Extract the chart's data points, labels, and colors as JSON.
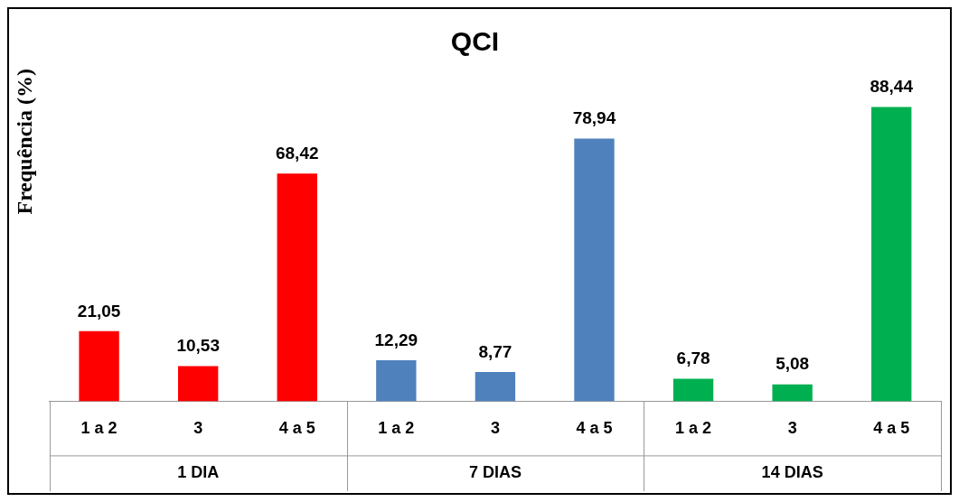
{
  "chart_data": {
    "type": "bar",
    "title": "QCI",
    "ylabel": "Frequência (%)",
    "categories": [
      "1 a 2",
      "3",
      "4 a 5",
      "1 a 2",
      "3",
      "4 a 5",
      "1 a 2",
      "3",
      "4 a 5"
    ],
    "values": [
      21.05,
      10.53,
      68.42,
      12.29,
      8.77,
      78.94,
      6.78,
      5.08,
      88.44
    ],
    "colors": [
      "#ff0000",
      "#ff0000",
      "#ff0000",
      "#4f81bd",
      "#4f81bd",
      "#4f81bd",
      "#00b050",
      "#00b050",
      "#00b050"
    ],
    "value_labels": [
      "21,05",
      "10,53",
      "68,42",
      "12,29",
      "8,77",
      "78,94",
      "6,78",
      "5,08",
      "88,44"
    ],
    "annotations": [
      "1 DIA",
      "7 DIAS",
      "14 DIAS"
    ],
    "grid": false,
    "legend": false
  }
}
